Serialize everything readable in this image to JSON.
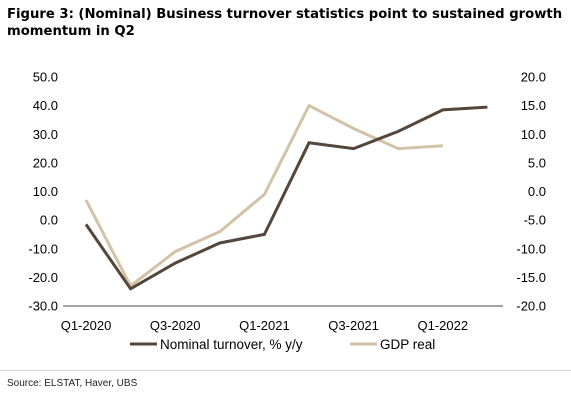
{
  "figure": {
    "title": "Figure 3: (Nominal) Business turnover statistics point to sustained growth momentum in Q2",
    "source": "Source: ELSTAT, Haver, UBS"
  },
  "chart_data": {
    "type": "line",
    "title": "Figure 3: (Nominal) Business turnover statistics point to sustained growth momentum in Q2",
    "x": [
      "Q1-2020",
      "Q2-2020",
      "Q3-2020",
      "Q4-2020",
      "Q1-2021",
      "Q2-2021",
      "Q3-2021",
      "Q4-2021",
      "Q1-2022",
      "Q2-2022"
    ],
    "x_tick_labels": [
      "Q1-2020",
      "Q3-2020",
      "Q1-2021",
      "Q3-2021",
      "Q1-2022"
    ],
    "y_left": {
      "range": [
        -30,
        50
      ],
      "ticks": [
        "50.0",
        "40.0",
        "30.0",
        "20.0",
        "10.0",
        "0.0",
        "-10.0",
        "-20.0",
        "-30.0"
      ]
    },
    "y_right": {
      "range": [
        -20,
        20
      ],
      "ticks": [
        "20.0",
        "15.0",
        "10.0",
        "5.0",
        "0.0",
        "-5.0",
        "-10.0",
        "-15.0",
        "-20.0"
      ]
    },
    "series": [
      {
        "name": "Nominal turnover, % y/y",
        "axis": "left",
        "color": "#54463a",
        "values": [
          -1.5,
          -24,
          -15,
          -8,
          -5,
          27,
          25,
          31,
          38.5,
          39.5
        ]
      },
      {
        "name": "GDP real",
        "axis": "right",
        "color": "#d2c2a6",
        "values": [
          -1.5,
          -16.5,
          -10.5,
          -7,
          -0.5,
          15,
          11,
          7.5,
          8,
          null
        ]
      }
    ],
    "legend": "bottom",
    "grid": false
  }
}
